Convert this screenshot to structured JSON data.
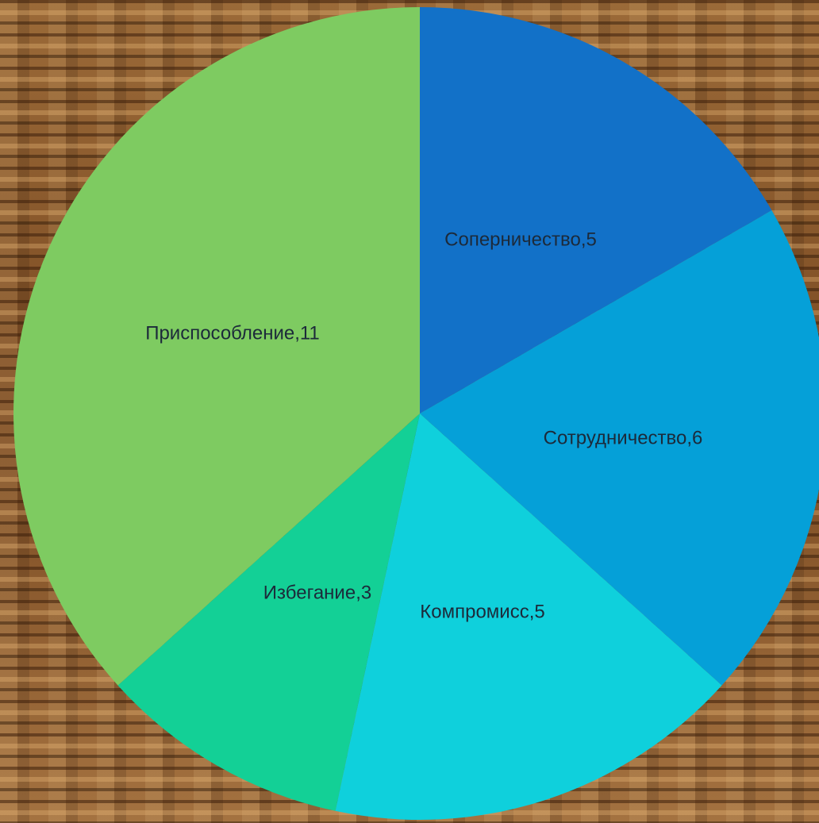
{
  "chart_data": {
    "type": "pie",
    "title": "",
    "start_angle_deg": 0,
    "direction": "clockwise",
    "slices": [
      {
        "label": "Соперничество",
        "value": 5,
        "display": "Соперничество,5",
        "color": "#1271c8"
      },
      {
        "label": "Сотрудничество",
        "value": 6,
        "display": "Сотрудничество,6",
        "color": "#05a0d8"
      },
      {
        "label": "Компромисс",
        "value": 5,
        "display": "Компромисс,5",
        "color": "#0fd0dc"
      },
      {
        "label": "Избегание",
        "value": 3,
        "display": "Избегание,3",
        "color": "#13d096"
      },
      {
        "label": "Приспособление",
        "value": 11,
        "display": "Приспособление,11",
        "color": "#7ecb61"
      }
    ]
  }
}
